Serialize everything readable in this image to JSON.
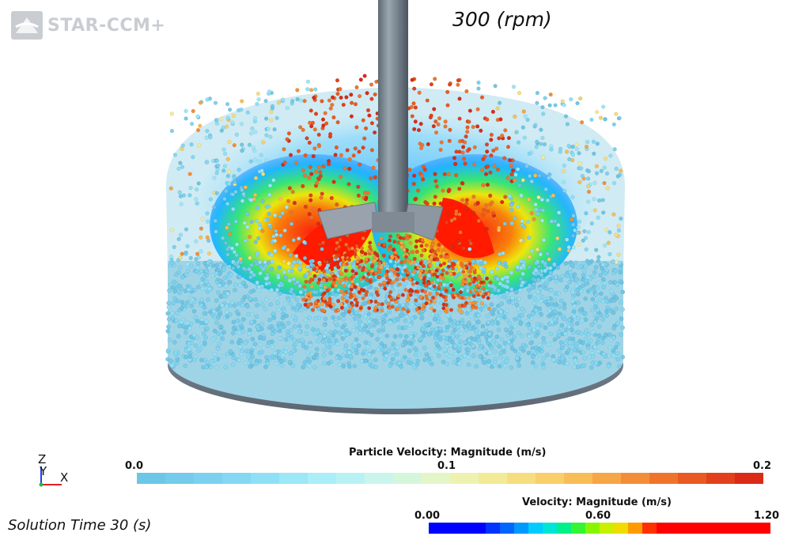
{
  "app": {
    "logo_text": "STAR-CCM+"
  },
  "scene": {
    "speed_label": "300 (rpm)",
    "solution_time": "Solution Time 30 (s)"
  },
  "axes_triad": {
    "z": "Z",
    "y": "Y",
    "x": "X"
  },
  "legend_particle": {
    "title": "Particle Velocity: Magnitude (m/s)",
    "min": "0.0",
    "mid": "0.1",
    "max": "0.2",
    "colors": [
      "#6cc6e6",
      "#74cbeb",
      "#7ad2f0",
      "#84d8f4",
      "#8fe0f6",
      "#9ce7f8",
      "#aaeef8",
      "#b9f2f4",
      "#c9f5ec",
      "#d6f6dc",
      "#e3f6c8",
      "#eef2b0",
      "#f3ea98",
      "#f6de80",
      "#f8cf6a",
      "#f8bd56",
      "#f6a646",
      "#f38e38",
      "#ee742c",
      "#e85a22",
      "#e2401c",
      "#db2a16"
    ]
  },
  "legend_velocity": {
    "title": "Velocity: Magnitude (m/s)",
    "min": "0.00",
    "mid": "0.60",
    "max": "1.20",
    "colors": [
      "#0000ff",
      "#0000ff",
      "#0000ff",
      "#0000ff",
      "#0033ff",
      "#0066ff",
      "#0099ff",
      "#00ccff",
      "#00e5d5",
      "#00f08a",
      "#33f533",
      "#88f500",
      "#c8f000",
      "#f0dc00",
      "#ff9a00",
      "#ff3000",
      "#ff0000",
      "#ff0000",
      "#ff0000",
      "#ff0000",
      "#ff0000",
      "#ff0000",
      "#ff0000",
      "#ff0000"
    ]
  }
}
